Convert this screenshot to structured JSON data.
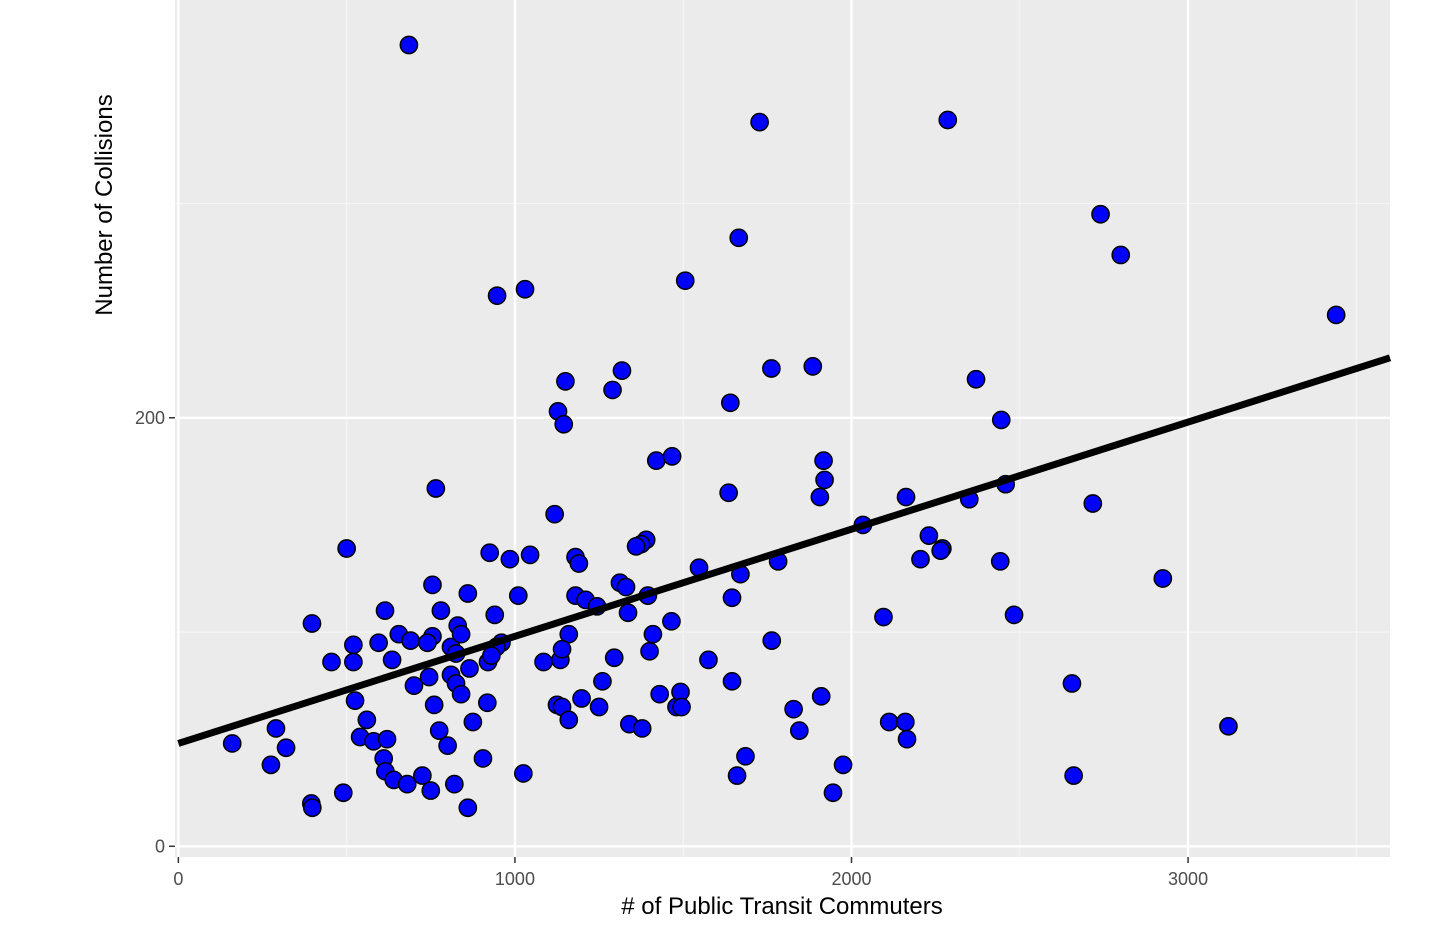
{
  "colors": {
    "panel_background": "#EBEBEB",
    "grid_major": "#FFFFFF",
    "grid_minor": "#F5F5F5",
    "point_fill": "#0000FF",
    "point_stroke": "#000000",
    "trend_line": "#000000",
    "tick_color": "#333333"
  },
  "chart_data": {
    "type": "scatter",
    "title": "",
    "xlabel": "# of Public Transit Commuters",
    "ylabel": "Number of Collisions",
    "xlim": [
      -10,
      3600
    ],
    "ylim": [
      -5,
      395
    ],
    "x_ticks": [
      0,
      1000,
      2000,
      3000
    ],
    "x_tick_labels": [
      "0",
      "1000",
      "2000",
      "3000"
    ],
    "y_ticks": [
      0,
      200
    ],
    "y_tick_labels": [
      "0",
      "200"
    ],
    "x_minor_ticks": [
      500,
      1500,
      2500,
      3500
    ],
    "y_minor_ticks": [
      100,
      300
    ],
    "grid": true,
    "legend": "none",
    "trend_line": {
      "type": "linear",
      "x": [
        0,
        3600
      ],
      "y": [
        48,
        228
      ]
    },
    "points": [
      [
        685,
        374
      ],
      [
        1727,
        338
      ],
      [
        2286,
        339
      ],
      [
        2740,
        295
      ],
      [
        2800,
        276
      ],
      [
        1665,
        284
      ],
      [
        3440,
        248
      ],
      [
        947,
        257
      ],
      [
        1030,
        260
      ],
      [
        1506,
        264
      ],
      [
        1762,
        223
      ],
      [
        1885,
        224
      ],
      [
        2370,
        218
      ],
      [
        1318,
        222
      ],
      [
        1150,
        217
      ],
      [
        1290,
        213
      ],
      [
        1640,
        207
      ],
      [
        1128,
        203
      ],
      [
        1145,
        197
      ],
      [
        2445,
        199
      ],
      [
        1420,
        180
      ],
      [
        1467,
        182
      ],
      [
        1917,
        180
      ],
      [
        1920,
        171
      ],
      [
        765,
        167
      ],
      [
        1635,
        165
      ],
      [
        1906,
        163
      ],
      [
        2162,
        163
      ],
      [
        2458,
        169
      ],
      [
        2350,
        162
      ],
      [
        2717,
        160
      ],
      [
        1118,
        155
      ],
      [
        2034,
        150
      ],
      [
        2230,
        145
      ],
      [
        2270,
        139
      ],
      [
        2265,
        138
      ],
      [
        1390,
        143
      ],
      [
        1375,
        141
      ],
      [
        1360,
        140
      ],
      [
        500,
        139
      ],
      [
        925,
        137
      ],
      [
        985,
        134
      ],
      [
        1045,
        136
      ],
      [
        1180,
        135
      ],
      [
        1190,
        132
      ],
      [
        1547,
        130
      ],
      [
        1782,
        133
      ],
      [
        2205,
        134
      ],
      [
        2442,
        133
      ],
      [
        1670,
        127
      ],
      [
        2925,
        125
      ],
      [
        755,
        122
      ],
      [
        860,
        118
      ],
      [
        1010,
        117
      ],
      [
        1180,
        117
      ],
      [
        1210,
        115
      ],
      [
        1244,
        112
      ],
      [
        1312,
        123
      ],
      [
        1330,
        121
      ],
      [
        1395,
        117
      ],
      [
        1645,
        116
      ],
      [
        614,
        110
      ],
      [
        780,
        110
      ],
      [
        940,
        108
      ],
      [
        1336,
        109
      ],
      [
        2483,
        108
      ],
      [
        2095,
        107
      ],
      [
        397,
        104
      ],
      [
        830,
        103
      ],
      [
        655,
        99
      ],
      [
        755,
        98
      ],
      [
        690,
        96
      ],
      [
        740,
        95
      ],
      [
        520,
        94
      ],
      [
        595,
        95
      ],
      [
        810,
        93
      ],
      [
        840,
        99
      ],
      [
        1160,
        99
      ],
      [
        1410,
        99
      ],
      [
        1465,
        105
      ],
      [
        960,
        95
      ],
      [
        945,
        93
      ],
      [
        825,
        90
      ],
      [
        1400,
        91
      ],
      [
        1763,
        96
      ],
      [
        455,
        86
      ],
      [
        520,
        86
      ],
      [
        635,
        87
      ],
      [
        920,
        86
      ],
      [
        930,
        89
      ],
      [
        1085,
        86
      ],
      [
        1135,
        87
      ],
      [
        1140,
        92
      ],
      [
        1295,
        88
      ],
      [
        1575,
        87
      ],
      [
        865,
        83
      ],
      [
        745,
        79
      ],
      [
        810,
        80
      ],
      [
        825,
        76
      ],
      [
        700,
        75
      ],
      [
        840,
        71
      ],
      [
        1260,
        77
      ],
      [
        1645,
        77
      ],
      [
        2655,
        76
      ],
      [
        525,
        68
      ],
      [
        760,
        66
      ],
      [
        918,
        67
      ],
      [
        1125,
        66
      ],
      [
        1140,
        65
      ],
      [
        1198,
        69
      ],
      [
        1250,
        65
      ],
      [
        1430,
        71
      ],
      [
        1480,
        65
      ],
      [
        1492,
        72
      ],
      [
        1495,
        65
      ],
      [
        1828,
        64
      ],
      [
        1910,
        70
      ],
      [
        560,
        59
      ],
      [
        540,
        51
      ],
      [
        580,
        49
      ],
      [
        620,
        50
      ],
      [
        775,
        54
      ],
      [
        800,
        47
      ],
      [
        875,
        58
      ],
      [
        1160,
        59
      ],
      [
        1340,
        57
      ],
      [
        1378,
        55
      ],
      [
        1845,
        54
      ],
      [
        2112,
        58
      ],
      [
        2160,
        58
      ],
      [
        2165,
        50
      ],
      [
        3120,
        56
      ],
      [
        290,
        55
      ],
      [
        160,
        48
      ],
      [
        320,
        46
      ],
      [
        275,
        38
      ],
      [
        610,
        41
      ],
      [
        615,
        35
      ],
      [
        640,
        31
      ],
      [
        680,
        29
      ],
      [
        725,
        33
      ],
      [
        750,
        26
      ],
      [
        820,
        29
      ],
      [
        905,
        41
      ],
      [
        1025,
        34
      ],
      [
        1660,
        33
      ],
      [
        1685,
        42
      ],
      [
        1945,
        25
      ],
      [
        1975,
        38
      ],
      [
        2660,
        33
      ],
      [
        490,
        25
      ],
      [
        395,
        20
      ],
      [
        398,
        18
      ],
      [
        860,
        18
      ]
    ]
  }
}
